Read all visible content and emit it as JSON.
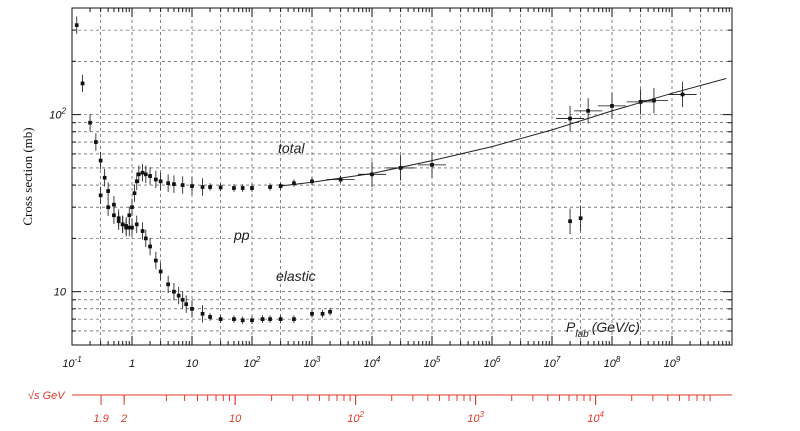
{
  "chart_data": {
    "type": "scatter",
    "ylabel": "Cross section (mb)",
    "xlabel": "P_lab (GeV/c)",
    "x_scale": "log",
    "y_scale": "log",
    "xlim": [
      0.1,
      10000000000
    ],
    "ylim": [
      5,
      400
    ],
    "grid": true,
    "x_ticks": [
      {
        "value": 0.1,
        "label": "10",
        "sup": "-1"
      },
      {
        "value": 1,
        "label": "1",
        "sup": ""
      },
      {
        "value": 10,
        "label": "10",
        "sup": ""
      },
      {
        "value": 100,
        "label": "10",
        "sup": "2"
      },
      {
        "value": 1000,
        "label": "10",
        "sup": "3"
      },
      {
        "value": 10000,
        "label": "10",
        "sup": "4"
      },
      {
        "value": 100000,
        "label": "10",
        "sup": "5"
      },
      {
        "value": 1000000,
        "label": "10",
        "sup": "6"
      },
      {
        "value": 10000000,
        "label": "10",
        "sup": "7"
      },
      {
        "value": 100000000,
        "label": "10",
        "sup": "8"
      },
      {
        "value": 1000000000,
        "label": "10",
        "sup": "9"
      }
    ],
    "y_ticks": [
      {
        "value": 10,
        "label": "10",
        "sup": ""
      },
      {
        "value": 100,
        "label": "10",
        "sup": "2"
      }
    ],
    "annotations": {
      "total": "total",
      "pp": "pp",
      "elastic": "elastic",
      "plab_main": "P",
      "plab_sub": "lab",
      "plab_units": "(GeV/c)"
    },
    "sqrt_s_axis": {
      "label": "√s GeV",
      "ticks": [
        {
          "value": 1.9,
          "label": "1.9",
          "sup": ""
        },
        {
          "value": 2,
          "label": "2",
          "sup": ""
        },
        {
          "value": 10,
          "label": "10",
          "sup": ""
        },
        {
          "value": 100,
          "label": "10",
          "sup": "2"
        },
        {
          "value": 1000,
          "label": "10",
          "sup": "3"
        },
        {
          "value": 10000,
          "label": "10",
          "sup": "4"
        }
      ]
    },
    "series": [
      {
        "name": "total",
        "points": [
          [
            0.12,
            320
          ],
          [
            0.15,
            150
          ],
          [
            0.2,
            90
          ],
          [
            0.25,
            70
          ],
          [
            0.3,
            55
          ],
          [
            0.35,
            44
          ],
          [
            0.4,
            37
          ],
          [
            0.5,
            31
          ],
          [
            0.6,
            26
          ],
          [
            0.7,
            24
          ],
          [
            0.8,
            23
          ],
          [
            0.9,
            27
          ],
          [
            1.0,
            30
          ],
          [
            1.1,
            36
          ],
          [
            1.2,
            42
          ],
          [
            1.3,
            46
          ],
          [
            1.5,
            47
          ],
          [
            1.7,
            46
          ],
          [
            2.0,
            45
          ],
          [
            2.5,
            43
          ],
          [
            3.0,
            42
          ],
          [
            4.0,
            41
          ],
          [
            5.0,
            40.5
          ],
          [
            7.0,
            40
          ],
          [
            10,
            39.5
          ],
          [
            15,
            39
          ],
          [
            20,
            39
          ],
          [
            30,
            38.8
          ],
          [
            50,
            38.5
          ],
          [
            70,
            38.5
          ],
          [
            100,
            38.5
          ],
          [
            200,
            39
          ],
          [
            300,
            39.5
          ],
          [
            500,
            41
          ],
          [
            1000,
            42
          ],
          [
            3000,
            43
          ],
          [
            10000,
            46
          ],
          [
            30000,
            50
          ],
          [
            100000,
            52
          ],
          [
            20000000,
            95
          ],
          [
            40000000,
            105
          ],
          [
            100000000,
            112
          ],
          [
            300000000,
            118
          ],
          [
            500000000,
            120
          ],
          [
            1500000000,
            130
          ]
        ]
      },
      {
        "name": "elastic",
        "points": [
          [
            0.3,
            35
          ],
          [
            0.4,
            30
          ],
          [
            0.5,
            27
          ],
          [
            0.6,
            25
          ],
          [
            0.7,
            24
          ],
          [
            0.8,
            23.5
          ],
          [
            0.9,
            23
          ],
          [
            1.0,
            23
          ],
          [
            1.2,
            24
          ],
          [
            1.5,
            22
          ],
          [
            1.7,
            20
          ],
          [
            2.0,
            18
          ],
          [
            2.5,
            15
          ],
          [
            3.0,
            13
          ],
          [
            4.0,
            11
          ],
          [
            5.0,
            10
          ],
          [
            6.0,
            9.5
          ],
          [
            7.0,
            9
          ],
          [
            8.0,
            8.5
          ],
          [
            10,
            8
          ],
          [
            15,
            7.5
          ],
          [
            20,
            7.2
          ],
          [
            30,
            7
          ],
          [
            50,
            7
          ],
          [
            70,
            6.9
          ],
          [
            100,
            6.9
          ],
          [
            150,
            7
          ],
          [
            200,
            7
          ],
          [
            300,
            7
          ],
          [
            500,
            7
          ],
          [
            1000,
            7.5
          ],
          [
            1500,
            7.5
          ],
          [
            2000,
            7.7
          ],
          [
            20000000,
            25
          ],
          [
            30000000,
            26
          ]
        ]
      }
    ]
  }
}
